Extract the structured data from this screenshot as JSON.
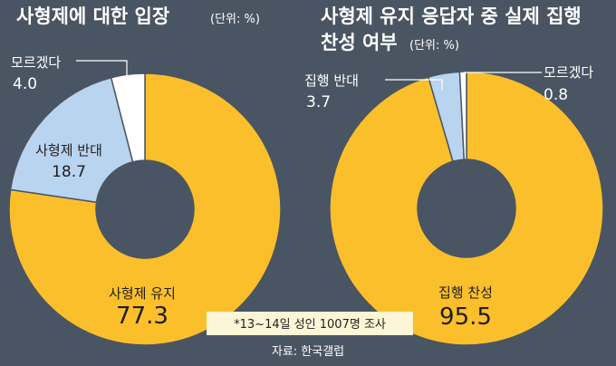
{
  "chart_data": [
    {
      "type": "pie",
      "title": "사형제에 대한 입장",
      "unit": "(단위: %)",
      "slices": [
        {
          "label": "사형제 유지",
          "value": 77.3,
          "color": "#fbbf2b"
        },
        {
          "label": "사형제 반대",
          "value": 18.7,
          "color": "#b9d4ef"
        },
        {
          "label": "모르겠다",
          "value": 4.0,
          "color": "#ffffff"
        }
      ]
    },
    {
      "type": "pie",
      "title": "사형제 유지 응답자 중 실제 집행 찬성 여부",
      "title_line1": "사형제 유지 응답자 중 실제 집행",
      "title_line2": "찬성 여부",
      "unit": "(단위: %)",
      "slices": [
        {
          "label": "집행 찬성",
          "value": 95.5,
          "color": "#fbbf2b"
        },
        {
          "label": "집행 반대",
          "value": 3.7,
          "color": "#b9d4ef"
        },
        {
          "label": "모르겠다",
          "value": 0.8,
          "color": "#ffffff"
        }
      ]
    }
  ],
  "note": "*13~14일 성인 1007명 조사",
  "source": "자료: 한국갤럽"
}
